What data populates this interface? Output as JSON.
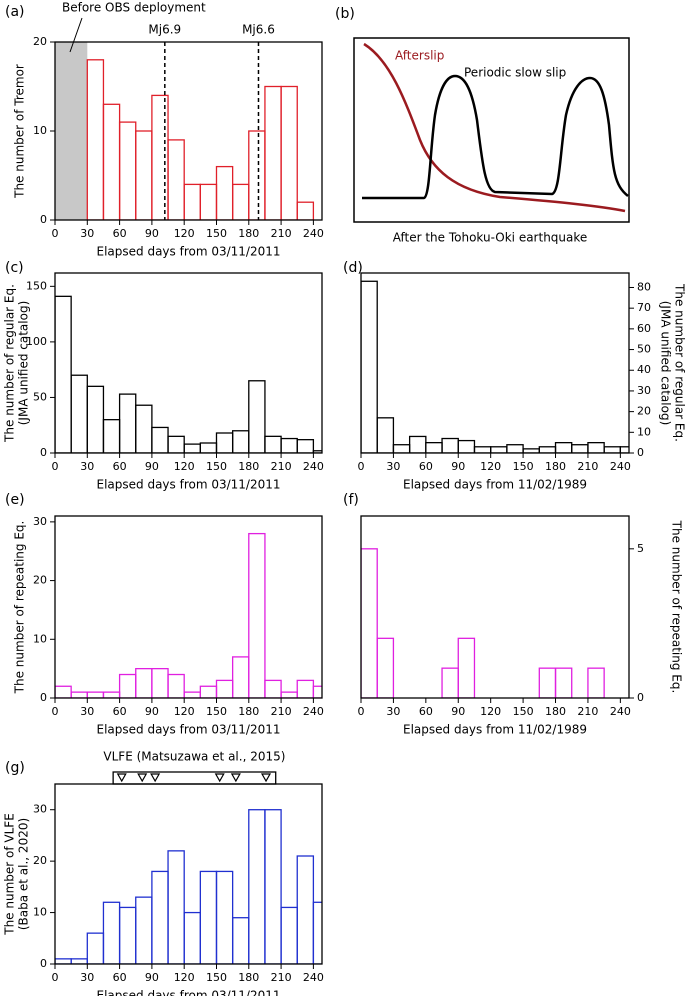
{
  "chart_data": [
    {
      "type": "histogram",
      "panel_label": "(a)",
      "xlabel": "Elapsed days from 03/11/2011",
      "ylabel": [
        "The number of Tremor"
      ],
      "y_axis_side": "left",
      "color": "#e0202a",
      "bins": [
        30,
        45,
        60,
        75,
        90,
        105,
        120,
        135,
        150,
        165,
        180,
        195,
        210,
        225,
        240
      ],
      "values": [
        18,
        13,
        11,
        10,
        14,
        9,
        4,
        4,
        6,
        4,
        10,
        15,
        15,
        2
      ],
      "xlim": [
        0,
        248
      ],
      "ylim": [
        0,
        20
      ],
      "xticks": [
        0,
        30,
        60,
        90,
        120,
        150,
        180,
        210,
        240
      ],
      "yticks": [
        0,
        10,
        20
      ],
      "shaded_range": [
        0,
        30
      ],
      "shade_color": "#c8c8c8",
      "shade_label": "Before OBS deployment",
      "vlines": [
        {
          "label": "Mj6.9",
          "x": 102
        },
        {
          "label": "Mj6.6",
          "x": 189
        }
      ]
    },
    {
      "type": "histogram",
      "panel_label": "(c)",
      "xlabel": "Elapsed days from 03/11/2011",
      "ylabel": [
        "The number of  regular Eq.",
        "(JMA unified catalog)"
      ],
      "y_axis_side": "left",
      "color": "#000000",
      "bins": [
        0,
        15,
        30,
        45,
        60,
        75,
        90,
        105,
        120,
        135,
        150,
        165,
        180,
        195,
        210,
        225,
        240,
        255
      ],
      "values": [
        141,
        70,
        60,
        30,
        53,
        43,
        23,
        15,
        8,
        9,
        18,
        20,
        65,
        15,
        13,
        12,
        2
      ],
      "xlim": [
        0,
        248
      ],
      "ylim": [
        0,
        162
      ],
      "xticks": [
        0,
        30,
        60,
        90,
        120,
        150,
        180,
        210,
        240
      ],
      "yticks": [
        0,
        50,
        100,
        150
      ]
    },
    {
      "type": "histogram",
      "panel_label": "(d)",
      "xlabel": "Elapsed days from 11/02/1989",
      "ylabel": [
        "The number of  regular Eq.",
        "(JMA unified catalog)"
      ],
      "y_axis_side": "right",
      "color": "#000000",
      "bins": [
        0,
        15,
        30,
        45,
        60,
        75,
        90,
        105,
        120,
        135,
        150,
        165,
        180,
        195,
        210,
        225,
        240,
        255
      ],
      "values": [
        83,
        17,
        4,
        8,
        5,
        7,
        6,
        3,
        3,
        4,
        2,
        3,
        5,
        4,
        5,
        3,
        3
      ],
      "xlim": [
        0,
        248
      ],
      "ylim": [
        0,
        87
      ],
      "xticks": [
        0,
        30,
        60,
        90,
        120,
        150,
        180,
        210,
        240
      ],
      "yticks": [
        0,
        10,
        20,
        30,
        40,
        50,
        60,
        70,
        80
      ]
    },
    {
      "type": "histogram",
      "panel_label": "(e)",
      "xlabel": "Elapsed days from 03/11/2011",
      "ylabel": [
        "The number of repeating Eq."
      ],
      "y_axis_side": "left",
      "color": "#e020e0",
      "bins": [
        0,
        15,
        30,
        45,
        60,
        75,
        90,
        105,
        120,
        135,
        150,
        165,
        180,
        195,
        210,
        225,
        240,
        255
      ],
      "values": [
        2,
        1,
        1,
        1,
        4,
        5,
        5,
        4,
        1,
        2,
        3,
        7,
        28,
        3,
        1,
        3,
        2
      ],
      "xlim": [
        0,
        248
      ],
      "ylim": [
        0,
        31
      ],
      "xticks": [
        0,
        30,
        60,
        90,
        120,
        150,
        180,
        210,
        240
      ],
      "yticks": [
        0,
        10,
        20,
        30
      ]
    },
    {
      "type": "histogram",
      "panel_label": "(f)",
      "xlabel": "Elapsed days from 11/02/1989",
      "ylabel": [
        "The number of repeating Eq."
      ],
      "y_axis_side": "right",
      "color": "#e020e0",
      "bins": [
        0,
        15,
        30,
        45,
        60,
        75,
        90,
        105,
        120,
        135,
        150,
        165,
        180,
        195,
        210,
        225,
        240,
        255
      ],
      "values": [
        5,
        2,
        0,
        0,
        0,
        1,
        2,
        0,
        0,
        0,
        0,
        1,
        1,
        0,
        1,
        0,
        0
      ],
      "xlim": [
        0,
        248
      ],
      "ylim": [
        0,
        6.1
      ],
      "xticks": [
        0,
        30,
        60,
        90,
        120,
        150,
        180,
        210,
        240
      ],
      "yticks": [
        0,
        5
      ]
    },
    {
      "type": "histogram",
      "panel_label": "(g)",
      "xlabel": "Elapsed days from 03/11/2011",
      "ylabel": [
        "The number of VLFE",
        "(Baba et al., 2020)"
      ],
      "y_axis_side": "left",
      "color": "#2030d0",
      "bins": [
        0,
        15,
        30,
        45,
        60,
        75,
        90,
        105,
        120,
        135,
        150,
        165,
        180,
        195,
        210,
        225,
        240,
        255
      ],
      "values": [
        1,
        1,
        6,
        12,
        11,
        13,
        18,
        22,
        10,
        18,
        18,
        9,
        30,
        30,
        11,
        21,
        12
      ],
      "xlim": [
        0,
        248
      ],
      "ylim": [
        0,
        35
      ],
      "xticks": [
        0,
        30,
        60,
        90,
        120,
        150,
        180,
        210,
        240
      ],
      "yticks": [
        0,
        10,
        20,
        30
      ],
      "markers": {
        "label": "VLFE (Matsuzawa et al., 2015)",
        "range": [
          54,
          205
        ],
        "x": [
          62,
          81,
          93,
          153,
          168,
          196
        ]
      }
    }
  ],
  "diagram_b": {
    "panel_label": "(b)",
    "afterslip": "Afterslip",
    "slow_slip": "Periodic slow  slip",
    "caption": "After the Tohoku-Oki earthquake"
  }
}
